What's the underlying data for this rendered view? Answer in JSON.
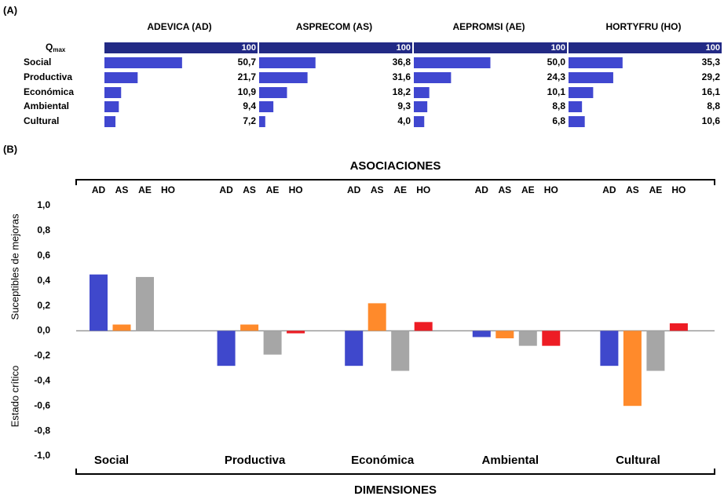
{
  "chart_data": [
    {
      "type": "bar_table",
      "panel_label": "(A)",
      "qmax_label": {
        "base": "Q",
        "sub": "max"
      },
      "categories": [
        "Social",
        "Productiva",
        "Económica",
        "Ambiental",
        "Cultural"
      ],
      "qmax_color": "#222a85",
      "color": "#4047d0",
      "series": [
        {
          "name": "ADEVICA (AD)",
          "qmax": 100,
          "values": [
            50.7,
            21.7,
            10.9,
            9.4,
            7.2
          ],
          "value_labels": [
            "50,7",
            "21,7",
            "10,9",
            "9,4",
            "7,2"
          ]
        },
        {
          "name": "ASPRECOM (AS)",
          "qmax": 100,
          "values": [
            36.8,
            31.6,
            18.2,
            9.3,
            4.0
          ],
          "value_labels": [
            "36,8",
            "31,6",
            "18,2",
            "9,3",
            "4,0"
          ]
        },
        {
          "name": "AEPROMSI (AE)",
          "qmax": 100,
          "values": [
            50.0,
            24.3,
            10.1,
            8.8,
            6.8
          ],
          "value_labels": [
            "50,0",
            "24,3",
            "10,1",
            "8,8",
            "6,8"
          ]
        },
        {
          "name": "HORTYFRU (HO)",
          "qmax": 100,
          "values": [
            35.3,
            29.2,
            16.1,
            8.8,
            10.6
          ],
          "value_labels": [
            "35,3",
            "29,2",
            "16,1",
            "8,8",
            "10,6"
          ]
        }
      ]
    },
    {
      "type": "grouped_bar",
      "panel_label": "(B)",
      "top_axis_title": "ASOCIACIONES",
      "x_axis_title": "DIMENSIONES",
      "annotations": [
        "Suceptibles de mejoras",
        "Estado crítico"
      ],
      "categories": [
        "Social",
        "Productiva",
        "Económica",
        "Ambiental",
        "Cultural"
      ],
      "series": [
        {
          "name": "AD",
          "color": "#3f48cc",
          "values": [
            0.45,
            -0.28,
            -0.28,
            -0.05,
            -0.28
          ]
        },
        {
          "name": "AS",
          "color": "#ff8a2b",
          "values": [
            0.05,
            0.05,
            0.22,
            -0.06,
            -0.6
          ]
        },
        {
          "name": "AE",
          "color": "#a6a6a6",
          "values": [
            0.43,
            -0.19,
            -0.32,
            -0.12,
            -0.32
          ]
        },
        {
          "name": "HO",
          "color": "#ed1c24",
          "values": [
            0,
            -0.02,
            0.07,
            -0.12,
            0.06
          ]
        }
      ],
      "ylim": [
        -1,
        1
      ],
      "yticks": [
        {
          "value": 1,
          "label": "1,0"
        },
        {
          "value": 0.8,
          "label": "0,8"
        },
        {
          "value": 0.6,
          "label": "0,6"
        },
        {
          "value": 0.4,
          "label": "0,4"
        },
        {
          "value": 0.2,
          "label": "0,2"
        },
        {
          "value": 0,
          "label": "0,0"
        },
        {
          "value": -0.2,
          "label": "-0,2"
        },
        {
          "value": -0.4,
          "label": "-0,4"
        },
        {
          "value": -0.6,
          "label": "-0,6"
        },
        {
          "value": -0.8,
          "label": "-0,8"
        },
        {
          "value": -1,
          "label": "-1,0"
        }
      ]
    }
  ]
}
